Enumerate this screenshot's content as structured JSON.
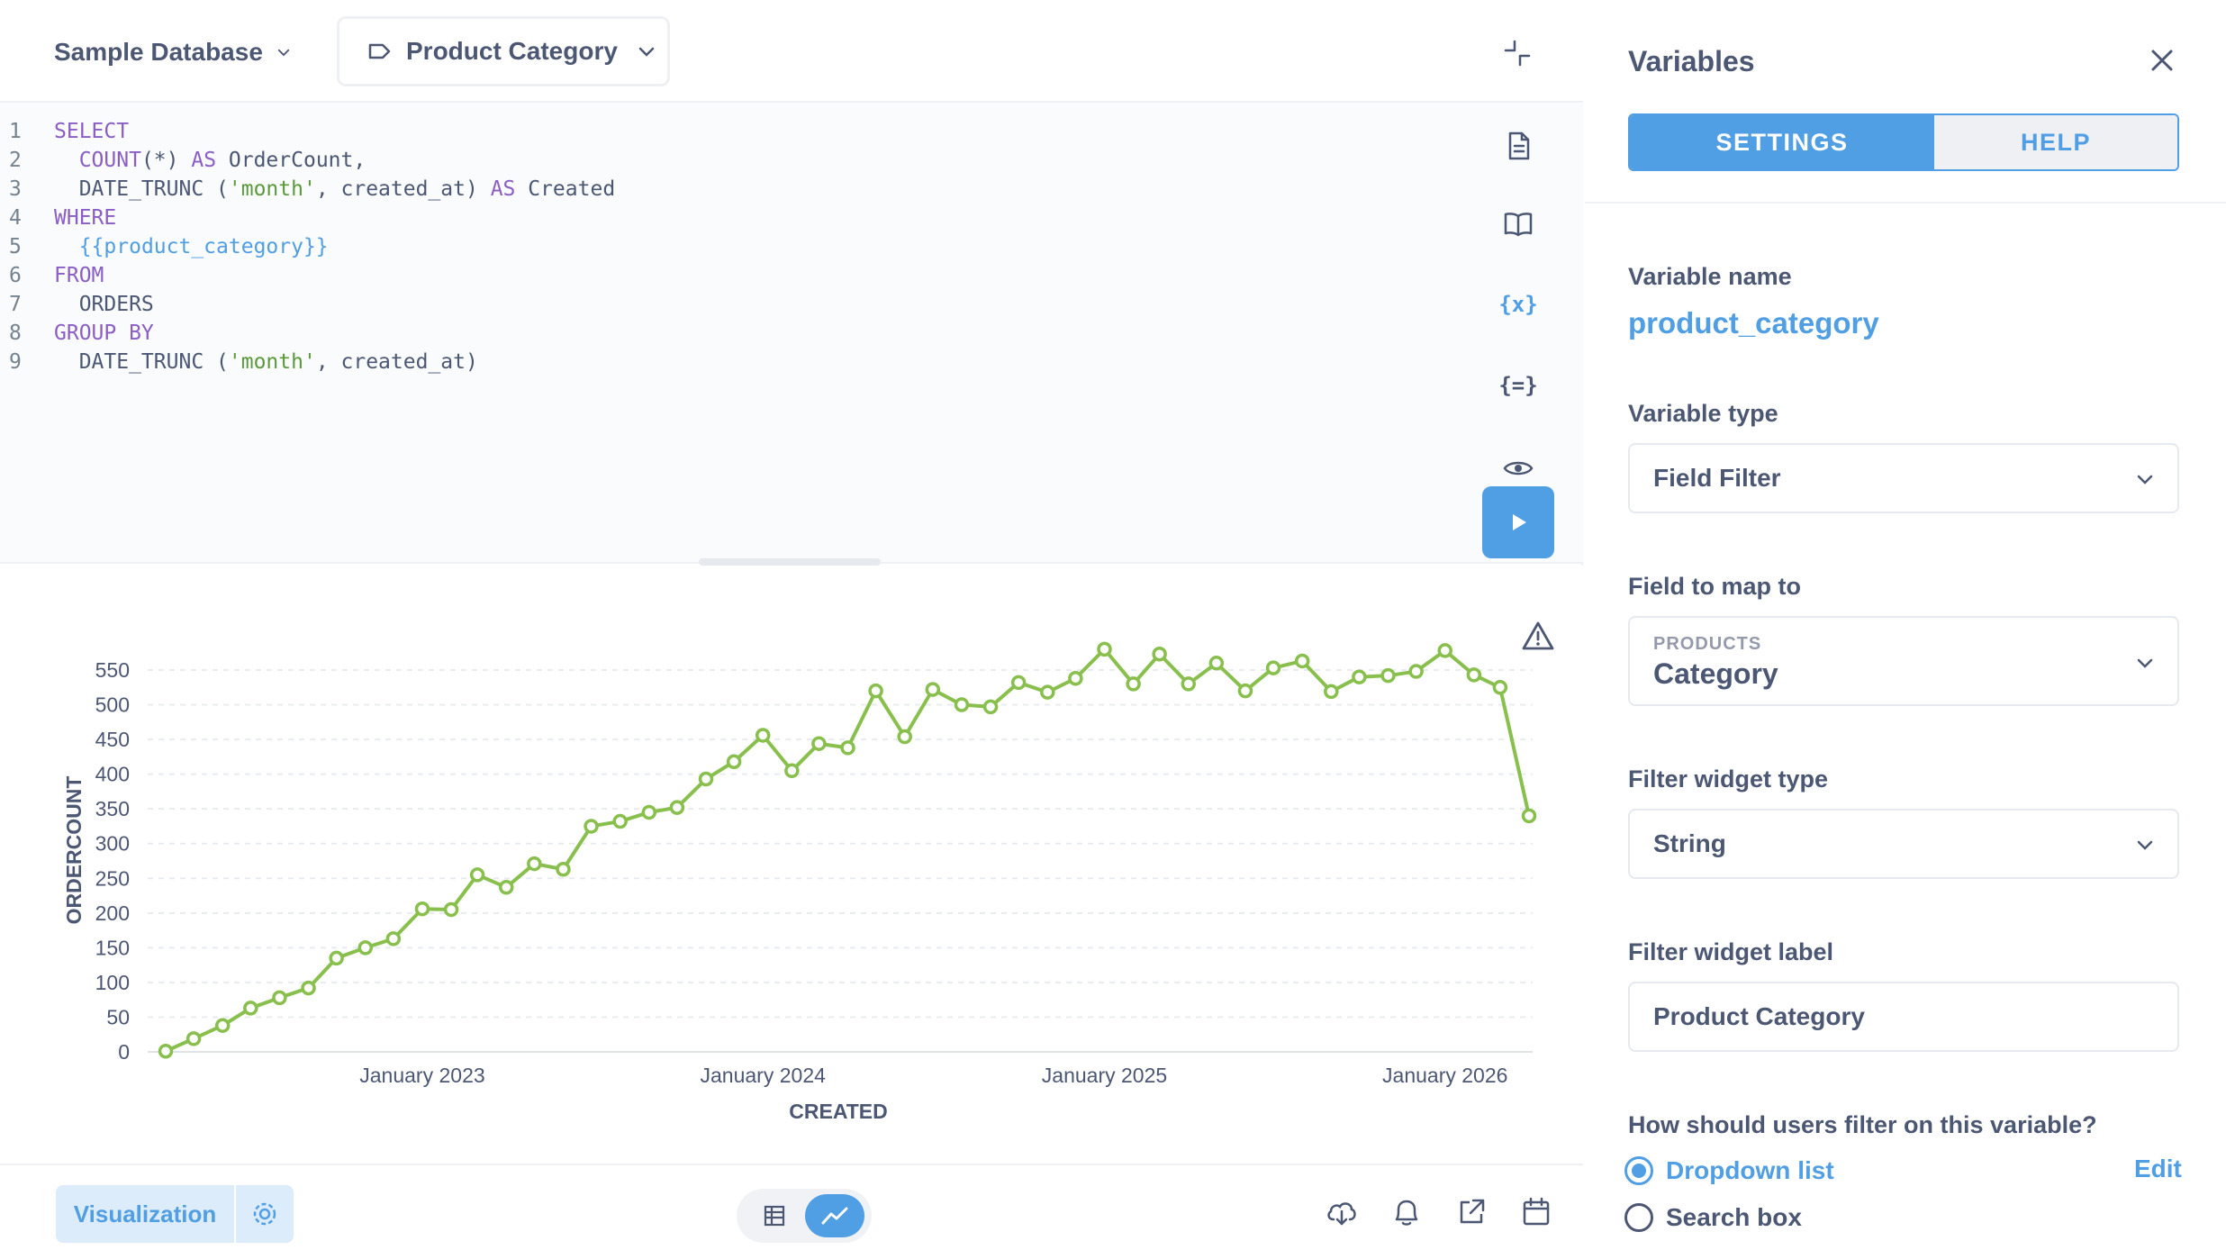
{
  "topbar": {
    "database": "Sample Database",
    "table": "Product Category"
  },
  "editor": {
    "lines": [
      {
        "n": "1",
        "parts": [
          {
            "t": "SELECT",
            "c": "kw"
          }
        ]
      },
      {
        "n": "2",
        "parts": [
          {
            "t": "  ",
            "c": "tok"
          },
          {
            "t": "COUNT",
            "c": "kw"
          },
          {
            "t": "(*) ",
            "c": "tok"
          },
          {
            "t": "AS",
            "c": "kw"
          },
          {
            "t": " OrderCount,",
            "c": "tok"
          }
        ]
      },
      {
        "n": "3",
        "parts": [
          {
            "t": "  DATE_TRUNC (",
            "c": "tok"
          },
          {
            "t": "'month'",
            "c": "str"
          },
          {
            "t": ", created_at) ",
            "c": "tok"
          },
          {
            "t": "AS",
            "c": "kw"
          },
          {
            "t": " Created",
            "c": "tok"
          }
        ]
      },
      {
        "n": "4",
        "parts": [
          {
            "t": "WHERE",
            "c": "kw"
          }
        ]
      },
      {
        "n": "5",
        "parts": [
          {
            "t": "  ",
            "c": "tok"
          },
          {
            "t": "{{product_category}}",
            "c": "var"
          }
        ]
      },
      {
        "n": "6",
        "parts": [
          {
            "t": "FROM",
            "c": "kw"
          }
        ]
      },
      {
        "n": "7",
        "parts": [
          {
            "t": "  ORDERS",
            "c": "tok"
          }
        ]
      },
      {
        "n": "8",
        "parts": [
          {
            "t": "GROUP BY",
            "c": "kw"
          }
        ]
      },
      {
        "n": "9",
        "parts": [
          {
            "t": "  DATE_TRUNC (",
            "c": "tok"
          },
          {
            "t": "'month'",
            "c": "str"
          },
          {
            "t": ", created_at)",
            "c": "tok"
          }
        ]
      }
    ],
    "tools": {
      "variables_glyph": "{x}",
      "snippets_glyph": "{=}"
    }
  },
  "chart_data": {
    "type": "line",
    "xlabel": "CREATED",
    "ylabel": "ORDERCOUNT",
    "ylim": [
      0,
      550
    ],
    "yticks": [
      0,
      50,
      100,
      150,
      200,
      250,
      300,
      350,
      400,
      450,
      500,
      550
    ],
    "xticks": [
      {
        "label": "January 2023",
        "date": "2023-01"
      },
      {
        "label": "January 2024",
        "date": "2024-01"
      },
      {
        "label": "January 2025",
        "date": "2025-01"
      },
      {
        "label": "January 2026",
        "date": "2026-01"
      }
    ],
    "series": [
      {
        "color": "#88bf4d",
        "x": [
          "2022-04",
          "2022-05",
          "2022-06",
          "2022-07",
          "2022-08",
          "2022-09",
          "2022-10",
          "2022-11",
          "2022-12",
          "2023-01",
          "2023-02",
          "2023-03",
          "2023-04",
          "2023-05",
          "2023-06",
          "2023-07",
          "2023-08",
          "2023-09",
          "2023-10",
          "2023-11",
          "2023-12",
          "2024-01",
          "2024-02",
          "2024-03",
          "2024-04",
          "2024-05",
          "2024-06",
          "2024-07",
          "2024-08",
          "2024-09",
          "2024-10",
          "2024-11",
          "2024-12",
          "2025-01",
          "2025-02",
          "2025-03",
          "2025-04",
          "2025-05",
          "2025-06",
          "2025-07",
          "2025-08",
          "2025-09",
          "2025-10",
          "2025-11",
          "2025-12",
          "2026-01",
          "2026-02",
          "2026-03",
          "2026-04"
        ],
        "values": [
          1,
          19,
          38,
          63,
          78,
          92,
          135,
          150,
          163,
          206,
          205,
          255,
          237,
          271,
          263,
          325,
          332,
          345,
          352,
          393,
          418,
          456,
          405,
          444,
          438,
          520,
          454,
          522,
          500,
          497,
          532,
          518,
          538,
          580,
          530,
          573,
          530,
          560,
          520,
          553,
          563,
          519,
          540,
          542,
          548,
          578,
          543,
          525,
          340
        ]
      }
    ]
  },
  "bottombar": {
    "visualization": "Visualization"
  },
  "sidebar": {
    "title": "Variables",
    "tabs": {
      "settings": "SETTINGS",
      "help": "HELP"
    },
    "variable_name_label": "Variable name",
    "variable_name": "product_category",
    "variable_type_label": "Variable type",
    "variable_type": "Field Filter",
    "field_map_label": "Field to map to",
    "field_table": "PRODUCTS",
    "field_name": "Category",
    "widget_type_label": "Filter widget type",
    "widget_type": "String",
    "widget_label_label": "Filter widget label",
    "widget_label": "Product Category",
    "filter_question": "How should users filter on this variable?",
    "options": [
      {
        "label": "Dropdown list",
        "selected": true
      },
      {
        "label": "Search box",
        "selected": false
      }
    ],
    "edit": "Edit"
  }
}
